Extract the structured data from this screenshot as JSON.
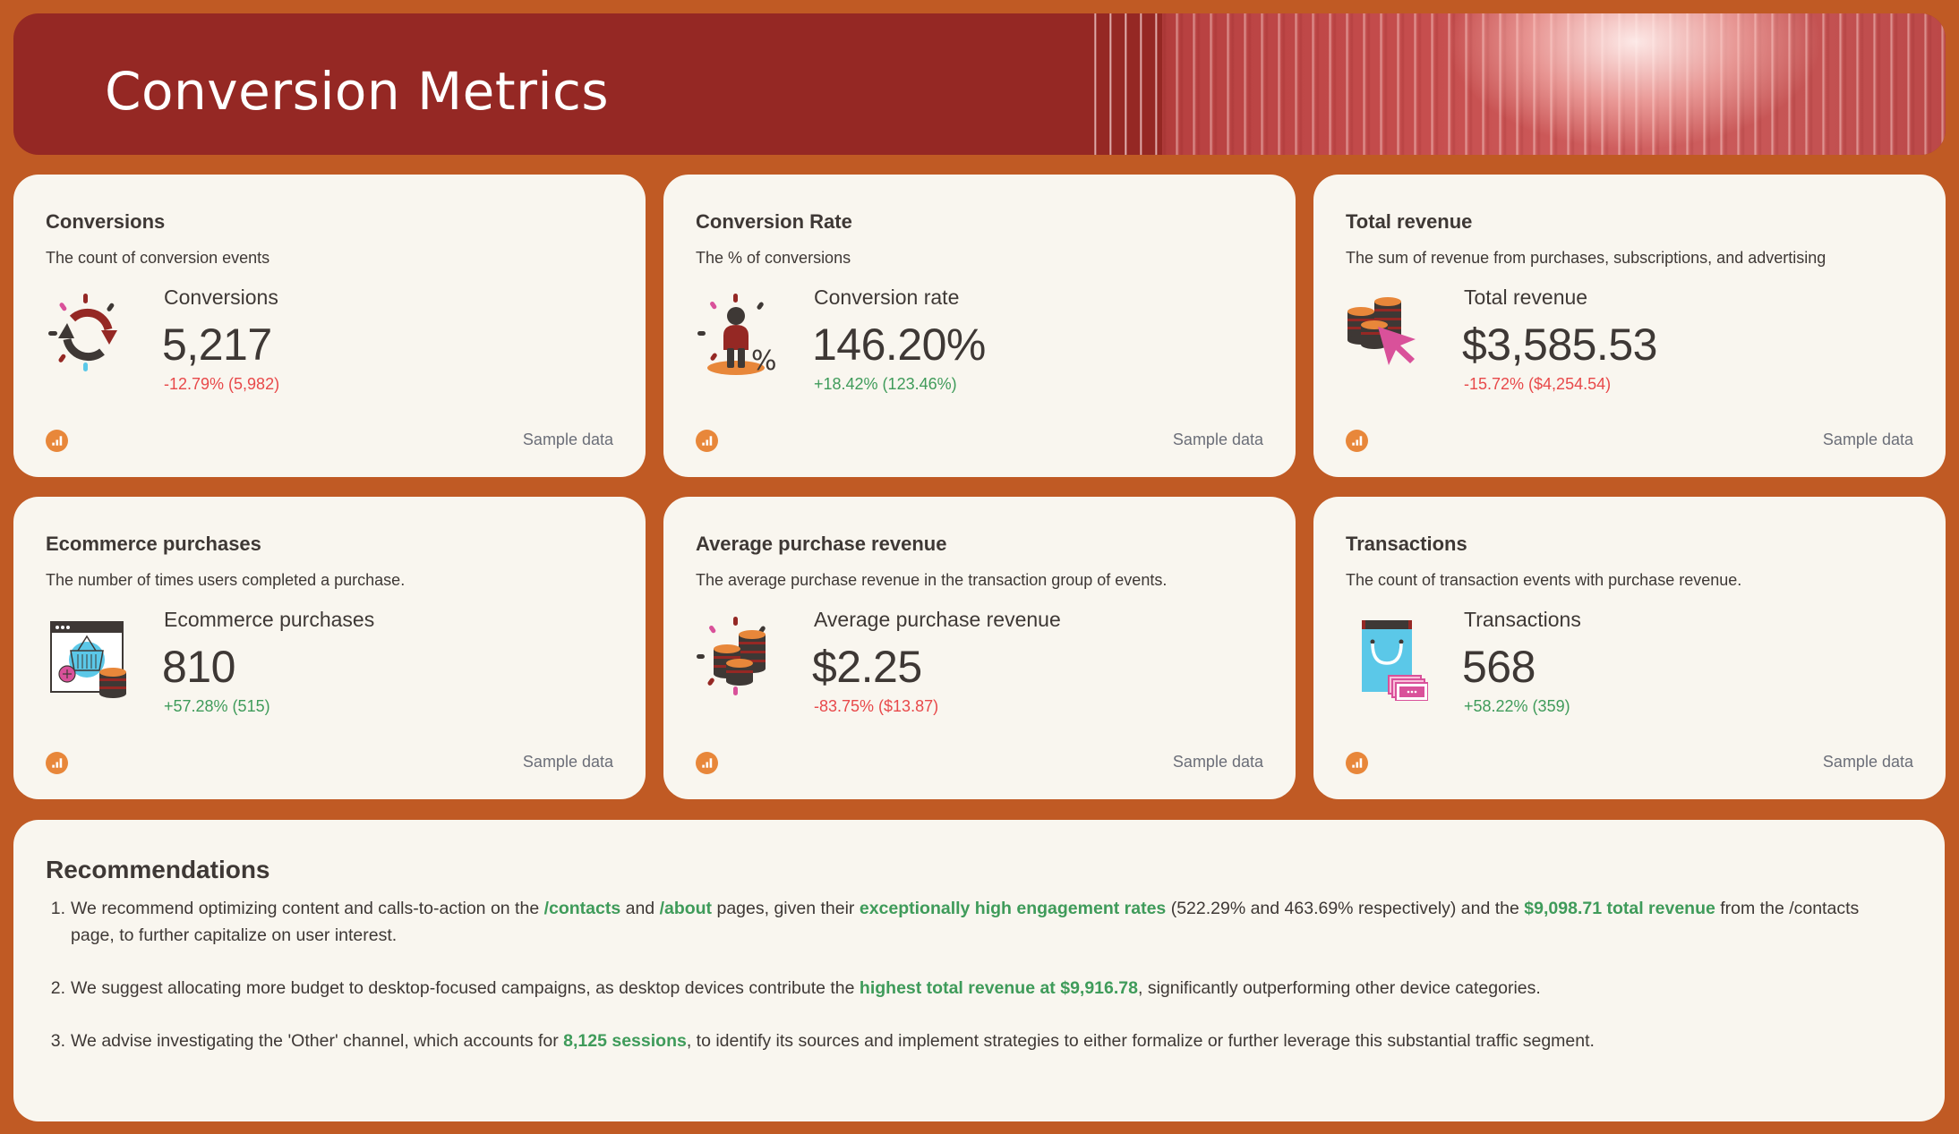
{
  "header": {
    "title": "Conversion Metrics"
  },
  "colors": {
    "background": "#c05a24",
    "header": "#952824",
    "card": "#f9f6ef",
    "text": "#3e3835",
    "negative": "#e8494a",
    "positive": "#3f9b5a",
    "source_icon": "#e8873a"
  },
  "cards": [
    {
      "title": "Conversions",
      "description": "The count of conversion events",
      "icon": "conversion-cycle-icon",
      "metric_label": "Conversions",
      "value": "5,217",
      "delta": "-12.79% (5,982)",
      "delta_direction": "down",
      "footer": "Sample data"
    },
    {
      "title": "Conversion Rate",
      "description": "The % of conversions",
      "icon": "person-percent-icon",
      "metric_label": "Conversion rate",
      "value": "146.20%",
      "delta": "+18.42% (123.46%)",
      "delta_direction": "up",
      "footer": "Sample data"
    },
    {
      "title": "Total revenue",
      "description": "The sum of revenue from purchases, subscriptions, and advertising",
      "icon": "coins-cursor-icon",
      "metric_label": "Total revenue",
      "value": "$3,585.53",
      "delta": "-15.72% ($4,254.54)",
      "delta_direction": "down",
      "footer": "Sample data"
    },
    {
      "title": "Ecommerce purchases",
      "description": "The number of times users completed a purchase.",
      "icon": "shopping-basket-browser-icon",
      "metric_label": "Ecommerce purchases",
      "value": "810",
      "delta": "+57.28% (515)",
      "delta_direction": "up",
      "footer": "Sample data"
    },
    {
      "title": "Average purchase revenue",
      "description": "The average purchase revenue in the transaction group of events.",
      "icon": "coin-stacks-icon",
      "metric_label": "Average purchase revenue",
      "value": "$2.25",
      "delta": "-83.75% ($13.87)",
      "delta_direction": "down",
      "footer": "Sample data"
    },
    {
      "title": "Transactions",
      "description": "The count of transaction events with purchase revenue.",
      "icon": "shopping-bag-money-icon",
      "metric_label": "Transactions",
      "value": "568",
      "delta": "+58.22% (359)",
      "delta_direction": "up",
      "footer": "Sample data"
    }
  ],
  "recommendations": {
    "title": "Recommendations",
    "items": [
      {
        "num": "1.",
        "parts": [
          {
            "t": "We recommend optimizing content and calls-to-action on the "
          },
          {
            "t": "/contacts",
            "hl": true
          },
          {
            "t": " and "
          },
          {
            "t": "/about",
            "hl": true
          },
          {
            "t": " pages, given their "
          },
          {
            "t": "exceptionally high engagement rates",
            "hl": true
          },
          {
            "t": " (522.29% and 463.69% respectively) and the "
          },
          {
            "t": "$9,098.71 total revenue",
            "hl": true
          },
          {
            "t": " from the /contacts page, to further capitalize on user interest."
          }
        ]
      },
      {
        "num": "2.",
        "parts": [
          {
            "t": "We suggest allocating more budget to desktop-focused campaigns, as desktop devices contribute the "
          },
          {
            "t": "highest total revenue at $9,916.78",
            "hl": true
          },
          {
            "t": ", significantly outperforming other device categories."
          }
        ]
      },
      {
        "num": "3.",
        "parts": [
          {
            "t": "We advise investigating the 'Other' channel, which accounts for "
          },
          {
            "t": "8,125 sessions",
            "hl": true
          },
          {
            "t": ", to identify its sources and implement strategies to either formalize or further leverage this substantial traffic segment."
          }
        ]
      }
    ]
  }
}
